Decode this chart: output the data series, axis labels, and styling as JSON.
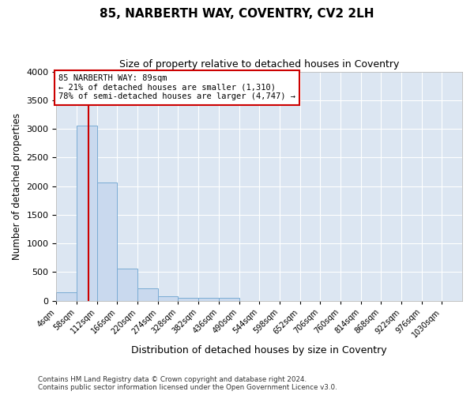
{
  "title_line1": "85, NARBERTH WAY, COVENTRY, CV2 2LH",
  "title_line2": "Size of property relative to detached houses in Coventry",
  "xlabel": "Distribution of detached houses by size in Coventry",
  "ylabel": "Number of detached properties",
  "bar_edges": [
    4,
    58,
    112,
    166,
    220,
    274,
    328,
    382,
    436,
    490,
    544,
    598,
    652,
    706,
    760,
    814,
    868,
    922,
    976,
    1030,
    1084
  ],
  "bar_heights": [
    140,
    3060,
    2060,
    560,
    210,
    75,
    50,
    50,
    50,
    0,
    0,
    0,
    0,
    0,
    0,
    0,
    0,
    0,
    0,
    0
  ],
  "bar_color": "#c9d9ee",
  "bar_edgecolor": "#7aacd4",
  "property_size": 89,
  "vline_color": "#cc0000",
  "annotation_text": "85 NARBERTH WAY: 89sqm\n← 21% of detached houses are smaller (1,310)\n78% of semi-detached houses are larger (4,747) →",
  "annotation_box_edgecolor": "#cc0000",
  "annotation_box_facecolor": "#ffffff",
  "ylim": [
    0,
    4000
  ],
  "yticks": [
    0,
    500,
    1000,
    1500,
    2000,
    2500,
    3000,
    3500,
    4000
  ],
  "fig_background_color": "#ffffff",
  "plot_background_color": "#dce6f2",
  "grid_color": "#ffffff",
  "footer_line1": "Contains HM Land Registry data © Crown copyright and database right 2024.",
  "footer_line2": "Contains public sector information licensed under the Open Government Licence v3.0."
}
